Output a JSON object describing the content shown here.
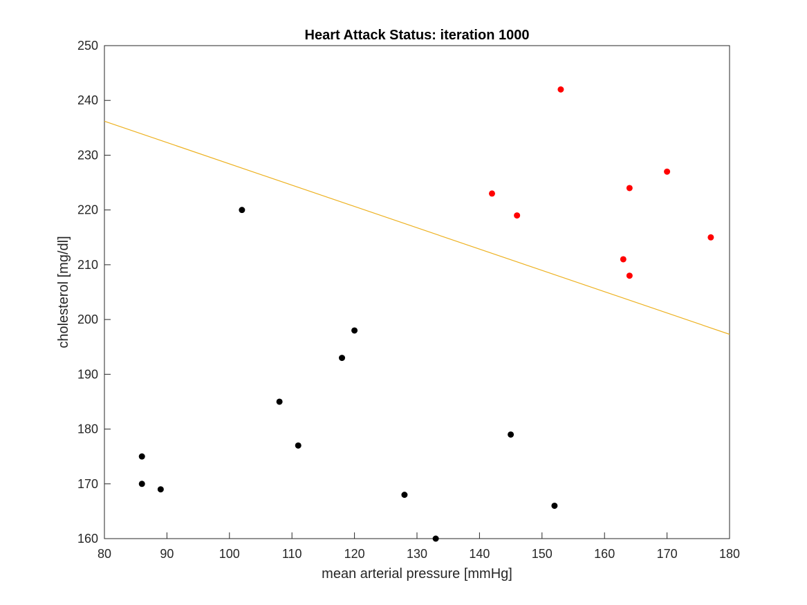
{
  "chart_data": {
    "type": "scatter",
    "title": "Heart Attack Status: iteration 1000",
    "xlabel": "mean arterial pressure [mmHg]",
    "ylabel": "cholesterol [mg/dl]",
    "xlim": [
      80,
      180
    ],
    "ylim": [
      160,
      250
    ],
    "xticks": [
      80,
      90,
      100,
      110,
      120,
      130,
      140,
      150,
      160,
      170,
      180
    ],
    "yticks": [
      160,
      170,
      180,
      190,
      200,
      210,
      220,
      230,
      240,
      250
    ],
    "grid": false,
    "legend": "none",
    "series": [
      {
        "color": "#000000",
        "points": [
          {
            "x": 86,
            "y": 175
          },
          {
            "x": 86,
            "y": 170
          },
          {
            "x": 89,
            "y": 169
          },
          {
            "x": 102,
            "y": 220
          },
          {
            "x": 108,
            "y": 185
          },
          {
            "x": 111,
            "y": 177
          },
          {
            "x": 118,
            "y": 193
          },
          {
            "x": 120,
            "y": 198
          },
          {
            "x": 128,
            "y": 168
          },
          {
            "x": 133,
            "y": 160
          },
          {
            "x": 145,
            "y": 179
          },
          {
            "x": 152,
            "y": 166
          }
        ]
      },
      {
        "color": "#ff0000",
        "points": [
          {
            "x": 142,
            "y": 223
          },
          {
            "x": 146,
            "y": 219
          },
          {
            "x": 153,
            "y": 242
          },
          {
            "x": 163,
            "y": 211
          },
          {
            "x": 164,
            "y": 224
          },
          {
            "x": 164,
            "y": 208
          },
          {
            "x": 170,
            "y": 227
          },
          {
            "x": 177,
            "y": 215
          }
        ]
      }
    ],
    "decision_line": {
      "color": "#edb120",
      "x": [
        80,
        180
      ],
      "y": [
        236.2,
        197.3
      ]
    }
  }
}
